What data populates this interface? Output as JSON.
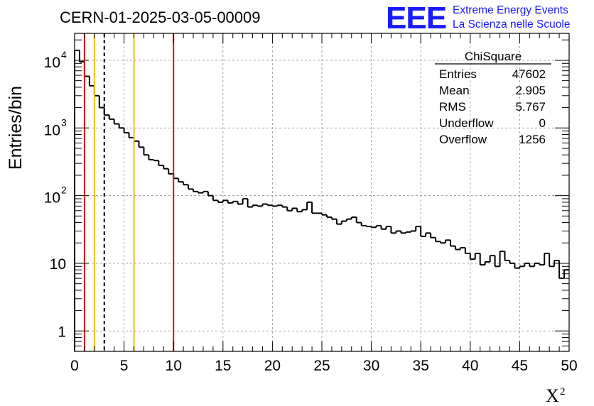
{
  "chart_data": {
    "type": "histogram",
    "title": "CERN-01-2025-03-05-00009",
    "xlabel": "X",
    "xlabel_superscript": "2",
    "ylabel": "Entries/bin",
    "xlim": [
      0,
      50
    ],
    "ylim_log": [
      0.5,
      25000
    ],
    "y_scale": "log",
    "grid": true,
    "bin_width": 0.5,
    "x_ticks": [
      "0",
      "5",
      "10",
      "15",
      "20",
      "25",
      "30",
      "35",
      "40",
      "45",
      "50"
    ],
    "y_ticks": [
      {
        "value": 1,
        "base": "1",
        "exp": ""
      },
      {
        "value": 10,
        "base": "10",
        "exp": ""
      },
      {
        "value": 100,
        "base": "10",
        "exp": "2"
      },
      {
        "value": 1000,
        "base": "10",
        "exp": "3"
      },
      {
        "value": 10000,
        "base": "10",
        "exp": "4"
      }
    ],
    "bin_values": [
      14000,
      9500,
      5800,
      4200,
      3000,
      2000,
      1550,
      1350,
      1150,
      1000,
      850,
      720,
      640,
      520,
      400,
      340,
      330,
      280,
      250,
      210,
      180,
      160,
      145,
      125,
      115,
      110,
      115,
      100,
      85,
      80,
      85,
      78,
      82,
      75,
      90,
      68,
      72,
      70,
      75,
      72,
      70,
      72,
      68,
      60,
      65,
      58,
      62,
      80,
      55,
      55,
      52,
      48,
      45,
      38,
      42,
      45,
      48,
      40,
      36,
      35,
      34,
      36,
      32,
      35,
      28,
      30,
      28,
      29,
      30,
      35,
      25,
      28,
      24,
      21,
      20,
      22,
      18,
      16,
      17,
      14,
      11.5,
      14,
      9.5,
      10.5,
      13,
      9,
      15,
      11,
      10,
      8.5,
      9,
      10,
      9,
      10,
      9.5,
      14,
      9,
      11,
      6,
      8,
      13,
      9,
      4.5,
      3,
      2,
      6,
      3.5,
      6.5,
      13,
      10,
      9,
      1,
      2,
      6,
      3.5,
      4.5
    ],
    "vertical_lines": [
      {
        "x": 1,
        "color": "#dd1111",
        "style": "solid"
      },
      {
        "x": 2,
        "color": "#f2c20a",
        "style": "solid"
      },
      {
        "x": 3,
        "color": "#000000",
        "style": "dashed"
      },
      {
        "x": 6,
        "color": "#f2c20a",
        "style": "solid"
      },
      {
        "x": 10,
        "color": "#dd1111",
        "style": "solid"
      }
    ],
    "stats_box": {
      "title": "ChiSquare",
      "rows": [
        {
          "label": "Entries",
          "value": "47602"
        },
        {
          "label": "Mean",
          "value": "2.905"
        },
        {
          "label": "RMS",
          "value": "5.767"
        },
        {
          "label": "Underflow",
          "value": "0"
        },
        {
          "label": "Overflow",
          "value": "1256"
        }
      ]
    }
  },
  "logo": {
    "acronym": "EEE",
    "line1": "Extreme Energy Events",
    "line2": "La Scienza nelle Scuole",
    "color": "#1a1aff"
  }
}
